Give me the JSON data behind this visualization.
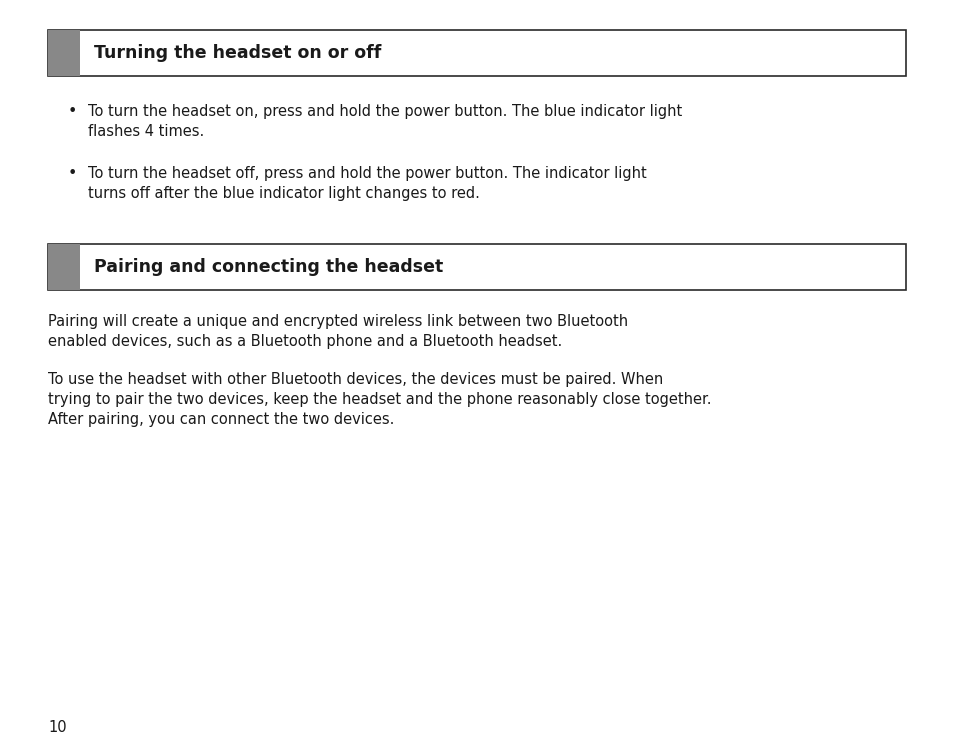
{
  "bg_color": "#ffffff",
  "page_number": "10",
  "section1_title": "Turning the headset on or off",
  "section1_bullet1_line1": "To turn the headset on, press and hold the power button. The blue indicator light",
  "section1_bullet1_line2": "flashes 4 times.",
  "section1_bullet2_line1": "To turn the headset off, press and hold the power button. The indicator light",
  "section1_bullet2_line2": "turns off after the blue indicator light changes to red.",
  "section2_title": "Pairing and connecting the headset",
  "section2_para1_line1": "Pairing will create a unique and encrypted wireless link between two Bluetooth",
  "section2_para1_line2": "enabled devices, such as a Bluetooth phone and a Bluetooth headset.",
  "section2_para2_line1": "To use the headset with other Bluetooth devices, the devices must be paired. When",
  "section2_para2_line2": "trying to pair the two devices, keep the headset and the phone reasonably close together.",
  "section2_para2_line3": "After pairing, you can connect the two devices.",
  "header_bg": "#ffffff",
  "header_border": "#2a2a2a",
  "header_accent": "#888888",
  "title_fontsize": 12.5,
  "body_fontsize": 10.5,
  "page_num_fontsize": 10.5,
  "text_color": "#1a1a1a"
}
